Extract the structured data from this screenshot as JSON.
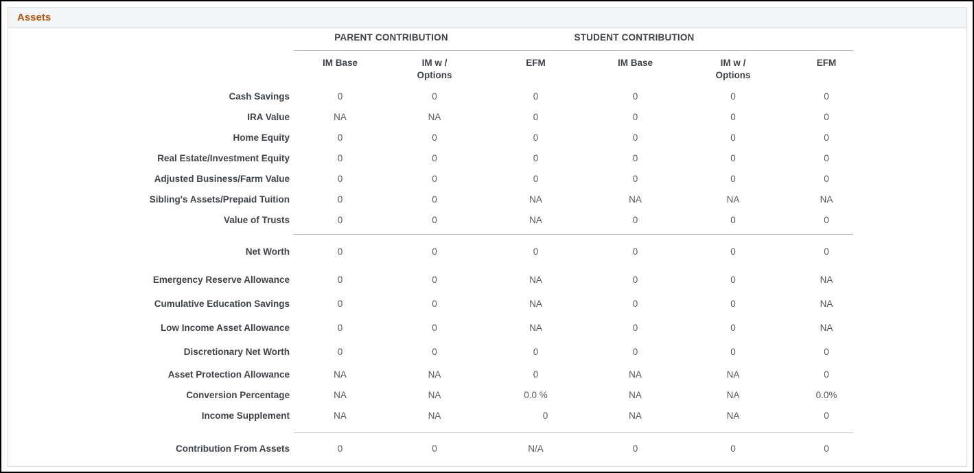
{
  "panel": {
    "title": "Assets"
  },
  "table": {
    "group_headers": [
      {
        "label": "PARENT CONTRIBUTION"
      },
      {
        "label": "STUDENT CONTRIBUTION"
      }
    ],
    "columns": [
      {
        "l1": "IM Base",
        "l2": ""
      },
      {
        "l1": "IM w /",
        "l2": "Options"
      },
      {
        "l1": "EFM",
        "l2": ""
      },
      {
        "l1": "IM Base",
        "l2": ""
      },
      {
        "l1": "IM w /",
        "l2": "Options"
      },
      {
        "l1": "EFM",
        "l2": ""
      }
    ],
    "rows": [
      {
        "label": "Cash Savings",
        "values": [
          "0",
          "0",
          "0",
          "0",
          "0",
          "0"
        ]
      },
      {
        "label": "IRA Value",
        "values": [
          "NA",
          "NA",
          "0",
          "0",
          "0",
          "0"
        ]
      },
      {
        "label": "Home Equity",
        "values": [
          "0",
          "0",
          "0",
          "0",
          "0",
          "0"
        ]
      },
      {
        "label": "Real Estate/Investment Equity",
        "values": [
          "0",
          "0",
          "0",
          "0",
          "0",
          "0"
        ]
      },
      {
        "label": "Adjusted Business/Farm Value",
        "values": [
          "0",
          "0",
          "0",
          "0",
          "0",
          "0"
        ]
      },
      {
        "label": "Sibling's Assets/Prepaid Tuition",
        "values": [
          "0",
          "0",
          "NA",
          "NA",
          "NA",
          "NA"
        ]
      },
      {
        "label": "Value of Trusts",
        "values": [
          "0",
          "0",
          "NA",
          "0",
          "0",
          "0"
        ]
      },
      {
        "label": "Net Worth",
        "values": [
          "0",
          "0",
          "0",
          "0",
          "0",
          "0"
        ]
      },
      {
        "label": "Emergency Reserve Allowance",
        "values": [
          "0",
          "0",
          "NA",
          "0",
          "0",
          "NA"
        ]
      },
      {
        "label": "Cumulative Education Savings",
        "values": [
          "0",
          "0",
          "NA",
          "0",
          "0",
          "NA"
        ]
      },
      {
        "label": "Low Income Asset Allowance",
        "values": [
          "0",
          "0",
          "NA",
          "0",
          "0",
          "NA"
        ]
      },
      {
        "label": "Discretionary Net Worth",
        "values": [
          "0",
          "0",
          "0",
          "0",
          "0",
          "0"
        ]
      },
      {
        "label": "Asset Protection Allowance",
        "values": [
          "NA",
          "NA",
          "0",
          "NA",
          "NA",
          "0"
        ]
      },
      {
        "label": "Conversion Percentage",
        "values": [
          "NA",
          "NA",
          "0.0 %",
          "NA",
          "NA",
          "0.0%"
        ]
      },
      {
        "label": "Income Supplement",
        "values": [
          "NA",
          "NA",
          "0",
          "NA",
          "NA",
          "0"
        ]
      },
      {
        "label": "Contribution From Assets",
        "values": [
          "0",
          "0",
          "N/A",
          "0",
          "0",
          "0"
        ]
      }
    ]
  },
  "colors": {
    "title_accent": "#b0570d",
    "header_bar_bg": "#f3f5f6",
    "panel_border": "#d9dcde",
    "label_text": "#3f4347",
    "value_text": "#54585b",
    "rule_line": "#b9bcbe"
  }
}
